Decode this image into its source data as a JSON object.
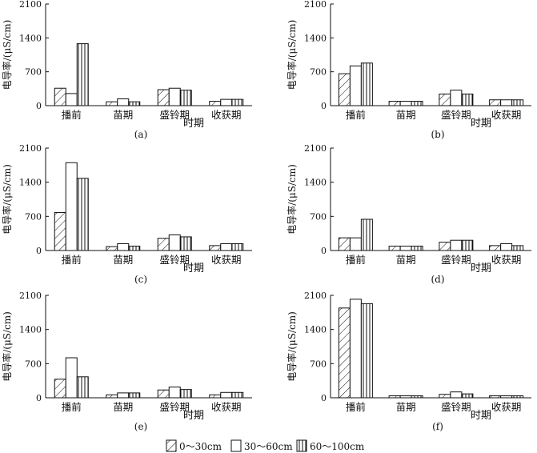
{
  "chart_data": [
    {
      "type": "bar",
      "panel_label": "(a)",
      "categories": [
        "播前",
        "苗期",
        "盛铃期",
        "收获期"
      ],
      "series": [
        {
          "name": "0～30cm",
          "values": [
            360,
            80,
            330,
            90
          ]
        },
        {
          "name": "30～60cm",
          "values": [
            250,
            140,
            360,
            130
          ]
        },
        {
          "name": "60～100cm",
          "values": [
            1280,
            80,
            320,
            130
          ]
        }
      ],
      "ylabel": "电导率/(μS/cm)",
      "xlabel": "时期",
      "ylim": [
        0,
        2100
      ],
      "yticks": [
        "0",
        "700",
        "1400",
        "2100"
      ]
    },
    {
      "type": "bar",
      "panel_label": "(b)",
      "categories": [
        "播前",
        "苗期",
        "盛铃期",
        "收获期"
      ],
      "series": [
        {
          "name": "0～30cm",
          "values": [
            660,
            90,
            240,
            120
          ]
        },
        {
          "name": "30～60cm",
          "values": [
            820,
            90,
            320,
            120
          ]
        },
        {
          "name": "60～100cm",
          "values": [
            880,
            90,
            240,
            120
          ]
        }
      ],
      "ylabel": "电导率/(μS/cm)",
      "xlabel": "时期",
      "ylim": [
        0,
        2100
      ],
      "yticks": [
        "0",
        "700",
        "1400",
        "2100"
      ]
    },
    {
      "type": "bar",
      "panel_label": "(c)",
      "categories": [
        "播前",
        "苗期",
        "盛铃期",
        "收获期"
      ],
      "series": [
        {
          "name": "0～30cm",
          "values": [
            780,
            80,
            250,
            100
          ]
        },
        {
          "name": "30～60cm",
          "values": [
            1800,
            140,
            320,
            140
          ]
        },
        {
          "name": "60～100cm",
          "values": [
            1480,
            90,
            280,
            140
          ]
        }
      ],
      "ylabel": "电导率/(μS/cm)",
      "xlabel": "时期",
      "ylim": [
        0,
        2100
      ],
      "yticks": [
        "0",
        "700",
        "1400",
        "2100"
      ]
    },
    {
      "type": "bar",
      "panel_label": "(d)",
      "categories": [
        "播前",
        "苗期",
        "盛铃期",
        "收获期"
      ],
      "series": [
        {
          "name": "0～30cm",
          "values": [
            260,
            90,
            170,
            100
          ]
        },
        {
          "name": "30～60cm",
          "values": [
            260,
            90,
            210,
            140
          ]
        },
        {
          "name": "60～100cm",
          "values": [
            640,
            90,
            210,
            100
          ]
        }
      ],
      "ylabel": "电导率/(μS/cm)",
      "xlabel": "时期",
      "ylim": [
        0,
        2100
      ],
      "yticks": [
        "0",
        "700",
        "1400",
        "2100"
      ]
    },
    {
      "type": "bar",
      "panel_label": "(e)",
      "categories": [
        "播前",
        "苗期",
        "盛铃期",
        "收获期"
      ],
      "series": [
        {
          "name": "0～30cm",
          "values": [
            380,
            60,
            160,
            60
          ]
        },
        {
          "name": "30～60cm",
          "values": [
            820,
            100,
            220,
            110
          ]
        },
        {
          "name": "60～100cm",
          "values": [
            430,
            100,
            170,
            110
          ]
        }
      ],
      "ylabel": "电导率/(μS/cm)",
      "xlabel": "时期",
      "ylim": [
        0,
        2100
      ],
      "yticks": [
        "0",
        "700",
        "1400",
        "2100"
      ]
    },
    {
      "type": "bar",
      "panel_label": "(f)",
      "categories": [
        "播前",
        "苗期",
        "盛铃期",
        "收获期"
      ],
      "series": [
        {
          "name": "0～30cm",
          "values": [
            1840,
            40,
            70,
            40
          ]
        },
        {
          "name": "30～60cm",
          "values": [
            2020,
            40,
            120,
            40
          ]
        },
        {
          "name": "60～100cm",
          "values": [
            1930,
            40,
            80,
            40
          ]
        }
      ],
      "ylabel": "电导率/(μS/cm)",
      "xlabel": "时期",
      "ylim": [
        0,
        2100
      ],
      "yticks": [
        "0",
        "700",
        "1400",
        "2100"
      ]
    }
  ],
  "legend": {
    "items": [
      {
        "label": "0～30cm",
        "pattern": "diagonal-hatch"
      },
      {
        "label": "30～60cm",
        "pattern": "blank"
      },
      {
        "label": "60～100cm",
        "pattern": "vertical-lines"
      }
    ]
  },
  "colors": {
    "ink": "#111111",
    "background": "#ffffff"
  }
}
